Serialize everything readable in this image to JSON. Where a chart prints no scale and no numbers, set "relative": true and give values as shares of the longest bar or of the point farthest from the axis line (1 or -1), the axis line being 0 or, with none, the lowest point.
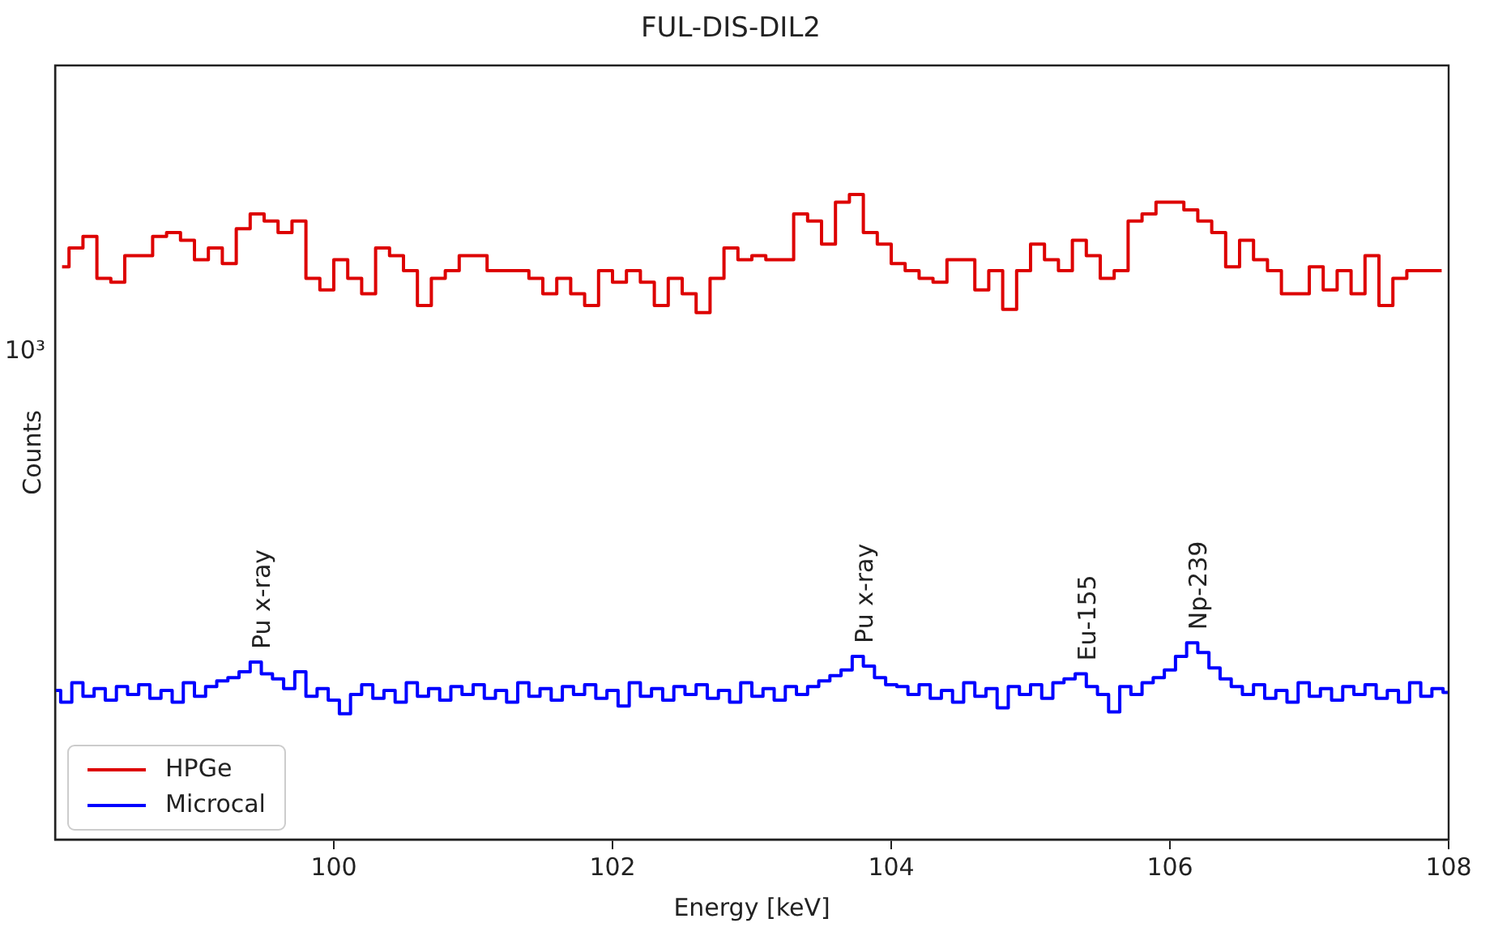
{
  "chart_data": {
    "type": "step",
    "title": "FUL-DIS-DIL2",
    "xlabel": "Energy [keV]",
    "ylabel": "Counts",
    "relative": true,
    "grid": false,
    "legend": "bottom left",
    "marker": "none",
    "line_style": "solid",
    "xlim": [
      98,
      108
    ],
    "xticks": [
      100,
      102,
      104,
      106,
      108
    ],
    "series": [
      {
        "name": "HPGe",
        "color": "#dd0000",
        "x": [
          98.05,
          98.15,
          98.25,
          98.35,
          98.45,
          98.55,
          98.65,
          98.75,
          98.85,
          98.95,
          99.05,
          99.15,
          99.25,
          99.35,
          99.45,
          99.55,
          99.65,
          99.75,
          99.85,
          99.95,
          100.05,
          100.15,
          100.25,
          100.35,
          100.45,
          100.55,
          100.65,
          100.75,
          100.85,
          100.95,
          101.05,
          101.15,
          101.25,
          101.35,
          101.45,
          101.55,
          101.65,
          101.75,
          101.85,
          101.95,
          102.05,
          102.15,
          102.25,
          102.35,
          102.45,
          102.55,
          102.65,
          102.75,
          102.85,
          102.95,
          103.05,
          103.15,
          103.25,
          103.35,
          103.45,
          103.55,
          103.65,
          103.75,
          103.85,
          103.95,
          104.05,
          104.15,
          104.25,
          104.35,
          104.45,
          104.55,
          104.65,
          104.75,
          104.85,
          104.95,
          105.05,
          105.15,
          105.25,
          105.35,
          105.45,
          105.55,
          105.65,
          105.75,
          105.85,
          105.95,
          106.05,
          106.15,
          106.25,
          106.35,
          106.45,
          106.55,
          106.65,
          106.75,
          106.85,
          106.95,
          107.05,
          107.15,
          107.25,
          107.35,
          107.45,
          107.55,
          107.65,
          107.75,
          107.85,
          107.95
        ],
        "values": [
          0.888,
          0.917,
          0.935,
          0.87,
          0.864,
          0.905,
          0.905,
          0.935,
          0.941,
          0.929,
          0.899,
          0.917,
          0.893,
          0.947,
          0.97,
          0.959,
          0.941,
          0.959,
          0.87,
          0.852,
          0.899,
          0.87,
          0.846,
          0.917,
          0.905,
          0.882,
          0.828,
          0.87,
          0.882,
          0.905,
          0.905,
          0.882,
          0.882,
          0.882,
          0.87,
          0.846,
          0.87,
          0.846,
          0.828,
          0.882,
          0.864,
          0.882,
          0.864,
          0.828,
          0.87,
          0.846,
          0.817,
          0.87,
          0.917,
          0.899,
          0.905,
          0.899,
          0.899,
          0.97,
          0.959,
          0.923,
          0.988,
          1,
          0.941,
          0.923,
          0.893,
          0.882,
          0.87,
          0.864,
          0.899,
          0.899,
          0.852,
          0.882,
          0.822,
          0.882,
          0.923,
          0.899,
          0.882,
          0.929,
          0.905,
          0.87,
          0.882,
          0.959,
          0.97,
          0.988,
          0.988,
          0.976,
          0.959,
          0.941,
          0.888,
          0.929,
          0.899,
          0.882,
          0.846,
          0.846,
          0.888,
          0.852,
          0.882,
          0.846,
          0.905,
          0.828,
          0.87,
          0.882,
          0.882,
          0.882
        ]
      },
      {
        "name": "Microcal",
        "color": "#0000ff",
        "x": [
          98,
          98.08,
          98.16,
          98.24,
          98.32,
          98.4,
          98.48,
          98.56,
          98.64,
          98.72,
          98.8,
          98.88,
          98.96,
          99.04,
          99.12,
          99.2,
          99.28,
          99.36,
          99.44,
          99.52,
          99.6,
          99.68,
          99.76,
          99.84,
          99.92,
          100,
          100.08,
          100.16,
          100.24,
          100.32,
          100.4,
          100.48,
          100.56,
          100.64,
          100.72,
          100.8,
          100.88,
          100.96,
          101.04,
          101.12,
          101.2,
          101.28,
          101.36,
          101.44,
          101.52,
          101.6,
          101.68,
          101.76,
          101.84,
          101.92,
          102,
          102.08,
          102.16,
          102.24,
          102.32,
          102.4,
          102.48,
          102.56,
          102.64,
          102.72,
          102.8,
          102.88,
          102.96,
          103.04,
          103.12,
          103.2,
          103.28,
          103.36,
          103.44,
          103.52,
          103.6,
          103.68,
          103.76,
          103.84,
          103.92,
          104,
          104.08,
          104.16,
          104.24,
          104.32,
          104.4,
          104.48,
          104.56,
          104.64,
          104.72,
          104.8,
          104.88,
          104.96,
          105.04,
          105.12,
          105.2,
          105.28,
          105.36,
          105.44,
          105.52,
          105.6,
          105.68,
          105.76,
          105.84,
          105.92,
          106,
          106.08,
          106.16,
          106.24,
          106.32,
          106.4,
          106.48,
          106.56,
          106.64,
          106.72,
          106.8,
          106.88,
          106.96,
          107.04,
          107.12,
          107.2,
          107.28,
          107.36,
          107.44,
          107.52,
          107.6,
          107.68,
          107.76,
          107.84,
          107.92,
          108
        ],
        "values": [
          0.231,
          0.213,
          0.243,
          0.222,
          0.234,
          0.216,
          0.237,
          0.225,
          0.24,
          0.219,
          0.231,
          0.213,
          0.243,
          0.222,
          0.237,
          0.246,
          0.251,
          0.26,
          0.275,
          0.257,
          0.249,
          0.234,
          0.26,
          0.222,
          0.234,
          0.216,
          0.195,
          0.225,
          0.24,
          0.219,
          0.231,
          0.213,
          0.243,
          0.222,
          0.234,
          0.216,
          0.237,
          0.225,
          0.24,
          0.219,
          0.231,
          0.213,
          0.243,
          0.222,
          0.234,
          0.216,
          0.237,
          0.225,
          0.24,
          0.219,
          0.231,
          0.207,
          0.243,
          0.222,
          0.234,
          0.216,
          0.237,
          0.225,
          0.24,
          0.219,
          0.231,
          0.213,
          0.243,
          0.222,
          0.234,
          0.216,
          0.237,
          0.225,
          0.237,
          0.246,
          0.254,
          0.263,
          0.284,
          0.269,
          0.251,
          0.24,
          0.237,
          0.225,
          0.24,
          0.219,
          0.231,
          0.213,
          0.243,
          0.222,
          0.234,
          0.204,
          0.237,
          0.225,
          0.24,
          0.219,
          0.243,
          0.249,
          0.257,
          0.237,
          0.225,
          0.198,
          0.237,
          0.225,
          0.243,
          0.251,
          0.263,
          0.284,
          0.305,
          0.29,
          0.266,
          0.249,
          0.237,
          0.225,
          0.24,
          0.219,
          0.231,
          0.213,
          0.243,
          0.222,
          0.234,
          0.216,
          0.237,
          0.225,
          0.24,
          0.219,
          0.231,
          0.213,
          0.243,
          0.222,
          0.234,
          0.228
        ]
      }
    ],
    "annotations": [
      "10³",
      {
        "text": "Pu x-ray",
        "x": 99.44,
        "y": 0.275
      },
      {
        "text": "Pu x-ray",
        "x": 103.76,
        "y": 0.284
      },
      {
        "text": "Eu-155",
        "x": 105.36,
        "y": 0.257
      },
      {
        "text": "Np-239",
        "x": 106.16,
        "y": 0.305
      }
    ]
  }
}
